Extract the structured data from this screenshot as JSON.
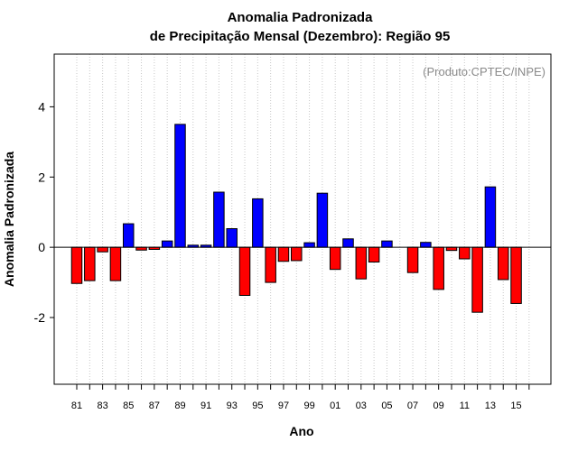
{
  "chart_data": {
    "type": "bar",
    "title": "Anomalia Padronizada",
    "subtitle": "de Precipitação Mensal (Dezembro): Região 95",
    "xlabel": "Ano",
    "ylabel": "Anomalia Padronizada",
    "annotation": "(Produto:CPTEC/INPE)",
    "ylim": [
      -3.9,
      5.5
    ],
    "yticks": [
      -2,
      0,
      2,
      4
    ],
    "grid": "vertical dotted",
    "positive_color": "#0000ff",
    "negative_color": "#ff0000",
    "categories": [
      "81",
      "82",
      "83",
      "84",
      "85",
      "86",
      "87",
      "88",
      "89",
      "90",
      "91",
      "92",
      "93",
      "94",
      "95",
      "96",
      "97",
      "98",
      "99",
      "00",
      "01",
      "02",
      "03",
      "04",
      "05",
      "06",
      "07",
      "08",
      "09",
      "10",
      "11",
      "12",
      "13",
      "14",
      "15",
      "16"
    ],
    "xtick_labels": [
      "81",
      "83",
      "85",
      "87",
      "89",
      "91",
      "93",
      "95",
      "97",
      "99",
      "01",
      "03",
      "05",
      "07",
      "09",
      "11",
      "13",
      "15"
    ],
    "values": [
      -1.03,
      -0.95,
      -0.13,
      -0.95,
      0.67,
      -0.08,
      -0.06,
      0.18,
      3.5,
      0.06,
      0.06,
      1.57,
      0.53,
      -1.37,
      1.38,
      -1.0,
      -0.4,
      -0.38,
      0.13,
      1.54,
      -0.63,
      0.24,
      -0.9,
      -0.42,
      0.18,
      0.0,
      -0.72,
      0.14,
      -1.2,
      -0.09,
      -0.33,
      -1.85,
      1.72,
      -0.92,
      -1.6,
      0.0
    ]
  }
}
